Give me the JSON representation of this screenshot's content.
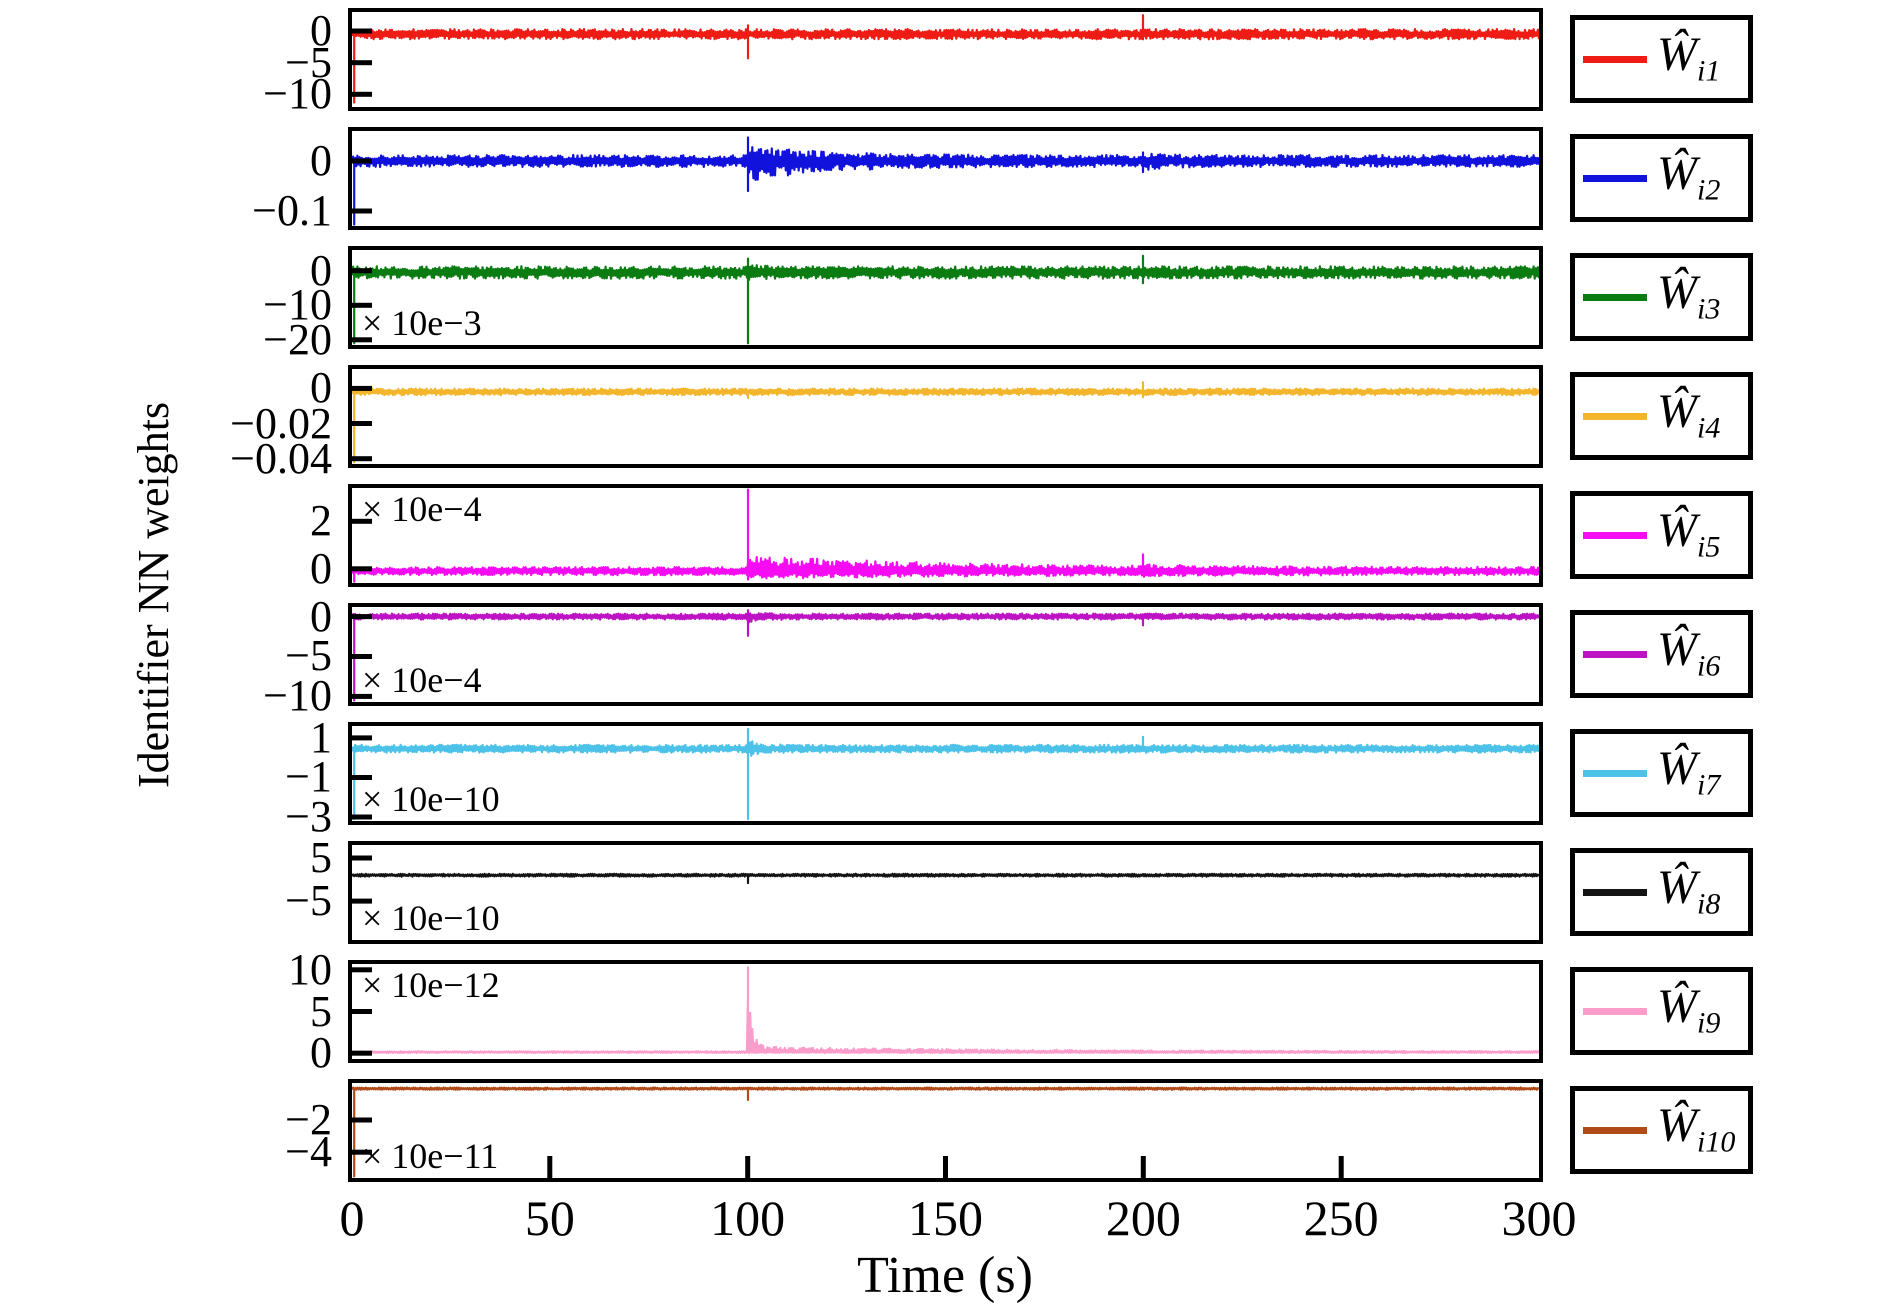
{
  "figure": {
    "ylabel": "Identifier NN weights",
    "xlabel": "Time (s)"
  },
  "chart_data": {
    "type": "line",
    "title": "",
    "xlabel": "Time (s)",
    "ylabel": "Identifier NN weights",
    "xlim": [
      0,
      300
    ],
    "xticks": [
      0,
      50,
      100,
      150,
      200,
      250,
      300
    ],
    "xtick_labels": [
      "0",
      "50",
      "100",
      "150",
      "200",
      "250",
      "300"
    ],
    "grid": false,
    "legend_position": "right-outside-per-subplot",
    "subplots": [
      {
        "id": "Wi1",
        "legend": {
          "main": "Ŵ",
          "sub": "i1"
        },
        "color": "#ee1c14",
        "ylim": [
          -12,
          3
        ],
        "yticks": [
          {
            "v": 0,
            "label": "0"
          },
          {
            "v": -5,
            "label": "−5"
          },
          {
            "v": -10,
            "label": "−10"
          }
        ],
        "scale_label": "",
        "scale_label_position": "",
        "baseline": -0.5,
        "noise_amplitude": 0.8,
        "events": [
          {
            "t": 0,
            "down_to": -11.3
          },
          {
            "t": 100,
            "up_to": 0.9,
            "down_to": -4.3
          },
          {
            "t": 200,
            "up_to": 2.5,
            "down_to": -1.3
          }
        ],
        "tails": []
      },
      {
        "id": "Wi2",
        "legend": {
          "main": "Ŵ",
          "sub": "i2"
        },
        "color": "#1212dd",
        "ylim": [
          -0.13,
          0.06
        ],
        "yticks": [
          {
            "v": 0,
            "label": "0"
          },
          {
            "v": -0.1,
            "label": "−0.1"
          }
        ],
        "scale_label": "",
        "scale_label_position": "",
        "baseline": 0,
        "noise_amplitude": 0.012,
        "events": [
          {
            "t": 0,
            "down_to": -0.127
          },
          {
            "t": 100,
            "up_to": 0.047,
            "down_to": -0.06
          },
          {
            "t": 200,
            "up_to": 0.017,
            "down_to": -0.022
          }
        ],
        "tails": [
          {
            "t": 100,
            "up": 0.02,
            "down": 0.03,
            "tau": 18
          },
          {
            "t": 200,
            "up": 0.005,
            "down": 0.007,
            "tau": 5
          }
        ]
      },
      {
        "id": "Wi3",
        "legend": {
          "main": "Ŵ",
          "sub": "i3"
        },
        "color": "#0a7c12",
        "ylim": [
          -21.5,
          6
        ],
        "yticks": [
          {
            "v": 0,
            "label": "0"
          },
          {
            "v": -10,
            "label": "−10"
          },
          {
            "v": -20,
            "label": "−20"
          }
        ],
        "scale_label": "× 10e−3",
        "scale_label_position": "bottom-left",
        "baseline": -0.5,
        "noise_amplitude": 1.8,
        "events": [
          {
            "t": 0,
            "down_to": -21
          },
          {
            "t": 100,
            "up_to": 3.5,
            "down_to": -21
          },
          {
            "t": 200,
            "up_to": 4.3,
            "down_to": -3.6
          }
        ],
        "tails": [
          {
            "t": 100,
            "up": 1.5,
            "down": 1.0,
            "tau": 2
          }
        ]
      },
      {
        "id": "Wi4",
        "legend": {
          "main": "Ŵ",
          "sub": "i4"
        },
        "color": "#f2b52b",
        "ylim": [
          -0.043,
          0.011
        ],
        "yticks": [
          {
            "v": 0,
            "label": "0"
          },
          {
            "v": -0.02,
            "label": "−0.02"
          },
          {
            "v": -0.04,
            "label": "−0.04"
          }
        ],
        "scale_label": "",
        "scale_label_position": "",
        "baseline": -0.002,
        "noise_amplitude": 0.0019,
        "events": [
          {
            "t": 0,
            "down_to": -0.042
          },
          {
            "t": 100,
            "down_to": -0.0055
          },
          {
            "t": 200,
            "up_to": 0.0035,
            "down_to": -0.005
          }
        ],
        "tails": []
      },
      {
        "id": "Wi5",
        "legend": {
          "main": "Ŵ",
          "sub": "i5"
        },
        "color": "#f50cf2",
        "ylim": [
          -0.6,
          3.4
        ],
        "yticks": [
          {
            "v": 2,
            "label": "2"
          },
          {
            "v": 0,
            "label": "0"
          }
        ],
        "scale_label": "× 10e−4",
        "scale_label_position": "top-left",
        "baseline": -0.1,
        "noise_amplitude": 0.17,
        "events": [
          {
            "t": 0,
            "down_to": -0.55
          },
          {
            "t": 100,
            "up_to": 3.33,
            "down_to": -0.45
          },
          {
            "t": 200,
            "up_to": 0.6
          }
        ],
        "tails": [
          {
            "t": 100,
            "up": 0.55,
            "down": 0.18,
            "tau": 45
          },
          {
            "t": 200,
            "up": 0.12,
            "down": 0.05,
            "tau": 12
          }
        ]
      },
      {
        "id": "Wi6",
        "legend": {
          "main": "Ŵ",
          "sub": "i6"
        },
        "color": "#bd13c4",
        "ylim": [
          -10.7,
          1.2
        ],
        "yticks": [
          {
            "v": 0,
            "label": "0"
          },
          {
            "v": -5,
            "label": "−5"
          },
          {
            "v": -10,
            "label": "−10"
          }
        ],
        "scale_label": "× 10e−4",
        "scale_label_position": "bottom-left",
        "baseline": 0,
        "noise_amplitude": 0.38,
        "events": [
          {
            "t": 0,
            "down_to": -10.5
          },
          {
            "t": 100,
            "up_to": 0.8,
            "down_to": -2.4
          },
          {
            "t": 200,
            "down_to": -1.1
          }
        ],
        "tails": [
          {
            "t": 100,
            "up": 0.25,
            "down": 0.5,
            "tau": 3
          }
        ]
      },
      {
        "id": "Wi7",
        "legend": {
          "main": "Ŵ",
          "sub": "i7"
        },
        "color": "#4cc2e9",
        "ylim": [
          -3.2,
          1.6
        ],
        "yticks": [
          {
            "v": 1,
            "label": "1"
          },
          {
            "v": -1,
            "label": "−1"
          },
          {
            "v": -3,
            "label": "−3"
          }
        ],
        "scale_label": "× 10e−10",
        "scale_label_position": "bottom-left",
        "baseline": 0.45,
        "noise_amplitude": 0.2,
        "events": [
          {
            "t": 0,
            "down_to": -3.1
          },
          {
            "t": 100,
            "up_to": 1.45,
            "down_to": -3.1
          },
          {
            "t": 200,
            "up_to": 1.05
          }
        ],
        "tails": [
          {
            "t": 100,
            "up": 0.3,
            "down": 0.25,
            "tau": 2.5
          }
        ]
      },
      {
        "id": "Wi8",
        "legend": {
          "main": "Ŵ",
          "sub": "i8"
        },
        "color": "#141414",
        "ylim": [
          -14,
          8
        ],
        "yticks": [
          {
            "v": 5,
            "label": "5"
          },
          {
            "v": -5,
            "label": "−5"
          }
        ],
        "scale_label": "× 10e−10",
        "scale_label_position": "bottom-left",
        "baseline": 1.0,
        "noise_amplitude": 0.33,
        "events": [
          {
            "t": 100,
            "down_to": -0.8
          }
        ],
        "tails": []
      },
      {
        "id": "Wi9",
        "legend": {
          "main": "Ŵ",
          "sub": "i9"
        },
        "color": "#fa9dcb",
        "ylim": [
          -0.7,
          10.7
        ],
        "yticks": [
          {
            "v": 10,
            "label": "10"
          },
          {
            "v": 5,
            "label": "5"
          },
          {
            "v": 0,
            "label": "0"
          }
        ],
        "scale_label": "× 10e−12",
        "scale_label_position": "top-left",
        "baseline": 0.13,
        "noise_amplitude": 0.1,
        "events": [
          {
            "t": 100,
            "up_to": 10.3
          }
        ],
        "tails": [
          {
            "t": 100,
            "up": 8.5,
            "tau": 1.2
          },
          {
            "t": 100,
            "up": 0.6,
            "tau": 60
          }
        ]
      },
      {
        "id": "Wi10",
        "legend": {
          "main": "Ŵ",
          "sub": "i10"
        },
        "color": "#b04a18",
        "ylim": [
          -5.6,
          0.3
        ],
        "yticks": [
          {
            "v": -2,
            "label": "−2"
          },
          {
            "v": -4,
            "label": "−4"
          }
        ],
        "scale_label": "× 10e−11",
        "scale_label_position": "bottom-left",
        "baseline": -0.05,
        "noise_amplitude": 0.07,
        "events": [
          {
            "t": 0,
            "down_to": -5.5
          },
          {
            "t": 100,
            "down_to": -0.75
          }
        ],
        "tails": []
      }
    ]
  }
}
